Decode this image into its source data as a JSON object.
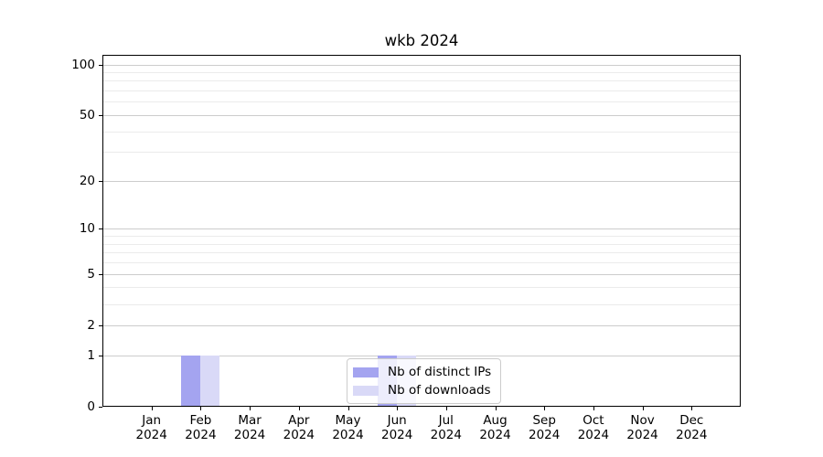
{
  "chart_data": {
    "type": "bar",
    "title": "wkb 2024",
    "x": {
      "months": [
        "Jan",
        "Feb",
        "Mar",
        "Apr",
        "May",
        "Jun",
        "Jul",
        "Aug",
        "Sep",
        "Oct",
        "Nov",
        "Dec"
      ],
      "year": "2024"
    },
    "y_axis": {
      "scale": "log(value+1)",
      "major_ticks": [
        0,
        1,
        2,
        5,
        10,
        20,
        50,
        100
      ],
      "minor_ticks": [
        3,
        4,
        6,
        7,
        8,
        9,
        30,
        40,
        60,
        70,
        80,
        90
      ],
      "max": 114,
      "grid": "on"
    },
    "series": [
      {
        "name": "Nb of distinct IPs",
        "color": "#a4a4f0",
        "values": [
          0,
          1,
          0,
          0,
          0,
          1,
          0,
          0,
          0,
          0,
          0,
          0
        ]
      },
      {
        "name": "Nb of downloads",
        "color": "#d9d9f7",
        "values": [
          0,
          1,
          0,
          0,
          0,
          1,
          0,
          0,
          0,
          0,
          0,
          0
        ]
      }
    ],
    "legend": {
      "position": "lower-center",
      "labels": [
        "Nb of distinct IPs",
        "Nb of downloads"
      ]
    }
  },
  "colors": {
    "background": "#ffffff",
    "spine": "#000000",
    "grid_major": "#cccccc",
    "grid_minor": "#ebebeb",
    "text": "#000000",
    "legend_border": "#cccccc"
  }
}
